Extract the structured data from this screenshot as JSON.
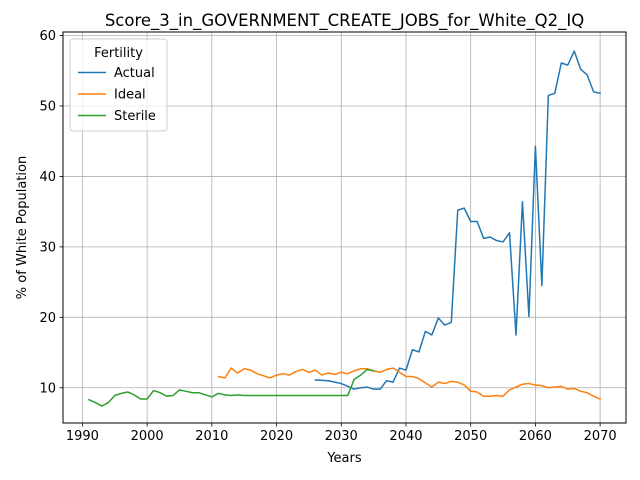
{
  "chart_data": {
    "type": "line",
    "title": "Score_3_in_GOVERNMENT_CREATE_JOBS_for_White_Q2_IQ",
    "xlabel": "Years",
    "ylabel": "% of White Population",
    "xlim": [
      1987,
      2074
    ],
    "ylim": [
      5,
      60.5
    ],
    "x_ticks": [
      1990,
      2000,
      2010,
      2020,
      2030,
      2040,
      2050,
      2060,
      2070
    ],
    "y_ticks": [
      10,
      20,
      30,
      40,
      50,
      60
    ],
    "grid": true,
    "legend": {
      "title": "Fertility",
      "placement": "top-left"
    },
    "series": [
      {
        "name": "Actual",
        "color": "#1f77b4",
        "points": [
          [
            2026,
            11.1
          ],
          [
            2027,
            11.05
          ],
          [
            2028,
            11.0
          ],
          [
            2029,
            10.8
          ],
          [
            2030,
            10.6
          ],
          [
            2031,
            10.2
          ],
          [
            2032,
            9.8
          ],
          [
            2033,
            10.0
          ],
          [
            2034,
            10.1
          ],
          [
            2035,
            9.8
          ],
          [
            2036,
            9.8
          ],
          [
            2037,
            11.0
          ],
          [
            2038,
            10.8
          ],
          [
            2039,
            12.8
          ],
          [
            2040,
            12.5
          ],
          [
            2041,
            15.4
          ],
          [
            2042,
            15.1
          ],
          [
            2043,
            18.0
          ],
          [
            2044,
            17.5
          ],
          [
            2045,
            19.9
          ],
          [
            2046,
            18.9
          ],
          [
            2047,
            19.3
          ],
          [
            2048,
            35.2
          ],
          [
            2049,
            35.5
          ],
          [
            2050,
            33.6
          ],
          [
            2051,
            33.6
          ],
          [
            2052,
            31.2
          ],
          [
            2053,
            31.4
          ],
          [
            2054,
            30.9
          ],
          [
            2055,
            30.7
          ],
          [
            2056,
            32.0
          ],
          [
            2057,
            17.5
          ],
          [
            2058,
            36.4
          ],
          [
            2059,
            20.1
          ],
          [
            2060,
            44.3
          ],
          [
            2061,
            24.5
          ],
          [
            2062,
            51.5
          ],
          [
            2063,
            51.8
          ],
          [
            2064,
            56.1
          ],
          [
            2065,
            55.8
          ],
          [
            2066,
            57.8
          ],
          [
            2067,
            55.2
          ],
          [
            2068,
            54.4
          ],
          [
            2069,
            52.0
          ],
          [
            2070,
            51.8
          ]
        ]
      },
      {
        "name": "Ideal",
        "color": "#ff7f0e",
        "points": [
          [
            2011,
            11.6
          ],
          [
            2012,
            11.4
          ],
          [
            2013,
            12.8
          ],
          [
            2014,
            12.1
          ],
          [
            2015,
            12.7
          ],
          [
            2016,
            12.5
          ],
          [
            2017,
            12.0
          ],
          [
            2018,
            11.7
          ],
          [
            2019,
            11.4
          ],
          [
            2020,
            11.8
          ],
          [
            2021,
            12.0
          ],
          [
            2022,
            11.8
          ],
          [
            2023,
            12.3
          ],
          [
            2024,
            12.6
          ],
          [
            2025,
            12.2
          ],
          [
            2026,
            12.5
          ],
          [
            2027,
            11.8
          ],
          [
            2028,
            12.1
          ],
          [
            2029,
            11.9
          ],
          [
            2030,
            12.2
          ],
          [
            2031,
            12.0
          ],
          [
            2032,
            12.4
          ],
          [
            2033,
            12.7
          ],
          [
            2034,
            12.7
          ],
          [
            2035,
            12.4
          ],
          [
            2036,
            12.2
          ],
          [
            2037,
            12.6
          ],
          [
            2038,
            12.8
          ],
          [
            2039,
            12.2
          ],
          [
            2040,
            11.6
          ],
          [
            2041,
            11.6
          ],
          [
            2042,
            11.3
          ],
          [
            2043,
            10.7
          ],
          [
            2044,
            10.1
          ],
          [
            2045,
            10.8
          ],
          [
            2046,
            10.6
          ],
          [
            2047,
            10.9
          ],
          [
            2048,
            10.8
          ],
          [
            2049,
            10.4
          ],
          [
            2050,
            9.5
          ],
          [
            2051,
            9.4
          ],
          [
            2052,
            8.8
          ],
          [
            2053,
            8.8
          ],
          [
            2054,
            8.9
          ],
          [
            2055,
            8.8
          ],
          [
            2056,
            9.7
          ],
          [
            2057,
            10.1
          ],
          [
            2058,
            10.5
          ],
          [
            2059,
            10.6
          ],
          [
            2060,
            10.4
          ],
          [
            2061,
            10.3
          ],
          [
            2062,
            10.0
          ],
          [
            2063,
            10.1
          ],
          [
            2064,
            10.2
          ],
          [
            2065,
            9.8
          ],
          [
            2066,
            9.9
          ],
          [
            2067,
            9.5
          ],
          [
            2068,
            9.3
          ],
          [
            2069,
            8.8
          ],
          [
            2070,
            8.4
          ]
        ]
      },
      {
        "name": "Sterile",
        "color": "#2ca02c",
        "points": [
          [
            1991,
            8.3
          ],
          [
            1992,
            7.9
          ],
          [
            1993,
            7.4
          ],
          [
            1994,
            7.9
          ],
          [
            1995,
            8.9
          ],
          [
            1996,
            9.2
          ],
          [
            1997,
            9.4
          ],
          [
            1998,
            9.0
          ],
          [
            1999,
            8.4
          ],
          [
            2000,
            8.4
          ],
          [
            2001,
            9.6
          ],
          [
            2002,
            9.3
          ],
          [
            2003,
            8.8
          ],
          [
            2004,
            8.9
          ],
          [
            2005,
            9.7
          ],
          [
            2006,
            9.5
          ],
          [
            2007,
            9.3
          ],
          [
            2008,
            9.3
          ],
          [
            2009,
            9.0
          ],
          [
            2010,
            8.7
          ],
          [
            2011,
            9.2
          ],
          [
            2012,
            9.0
          ],
          [
            2013,
            8.9
          ],
          [
            2014,
            9.0
          ],
          [
            2015,
            8.9
          ],
          [
            2016,
            8.9
          ],
          [
            2017,
            8.9
          ],
          [
            2018,
            8.9
          ],
          [
            2019,
            8.9
          ],
          [
            2020,
            8.9
          ],
          [
            2021,
            8.9
          ],
          [
            2022,
            8.9
          ],
          [
            2023,
            8.9
          ],
          [
            2024,
            8.9
          ],
          [
            2025,
            8.9
          ],
          [
            2026,
            8.9
          ],
          [
            2027,
            8.9
          ],
          [
            2028,
            8.9
          ],
          [
            2029,
            8.9
          ],
          [
            2030,
            8.9
          ],
          [
            2031,
            8.9
          ],
          [
            2032,
            11.2
          ],
          [
            2033,
            11.8
          ],
          [
            2034,
            12.6
          ],
          [
            2035,
            12.4
          ]
        ]
      }
    ]
  }
}
